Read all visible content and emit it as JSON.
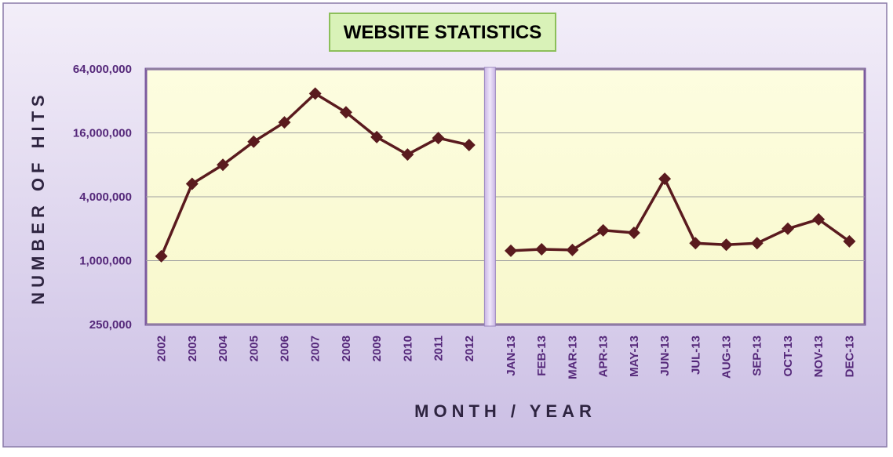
{
  "chart_data": {
    "type": "line",
    "title": "WEBSITE STATISTICS",
    "x_label": "MONTH / YEAR",
    "y_label": "NUMBER OF HITS",
    "categories": [
      "2002",
      "2003",
      "2004",
      "2005",
      "2006",
      "2007",
      "2008",
      "2009",
      "2010",
      "2011",
      "2012",
      null,
      "JAN-13",
      "FEB-13",
      "MAR-13",
      "APR-13",
      "MAY-13",
      "JUN-13",
      "JUL-13",
      "AUG-13",
      "SEP-13",
      "OCT-13",
      "NOV-13",
      "DEC-13"
    ],
    "series": [
      {
        "name": "Hits",
        "color": "#5a1a1e",
        "values": [
          1100000,
          5300000,
          8000000,
          13200000,
          20100000,
          37500000,
          25000000,
          14600000,
          10000000,
          14300000,
          12300000,
          null,
          1240000,
          1280000,
          1260000,
          1930000,
          1830000,
          5900000,
          1460000,
          1410000,
          1460000,
          2000000,
          2450000,
          1520000
        ]
      }
    ],
    "log_scale": true,
    "ylim": [
      250000,
      64000000
    ],
    "yticks": [
      {
        "value": 250000,
        "label": "250,000"
      },
      {
        "value": 1000000,
        "label": "1,000,000"
      },
      {
        "value": 4000000,
        "label": "4,000,000"
      },
      {
        "value": 16000000,
        "label": "16,000,000"
      },
      {
        "value": 64000000,
        "label": "64,000,000"
      }
    ],
    "grid": true
  }
}
